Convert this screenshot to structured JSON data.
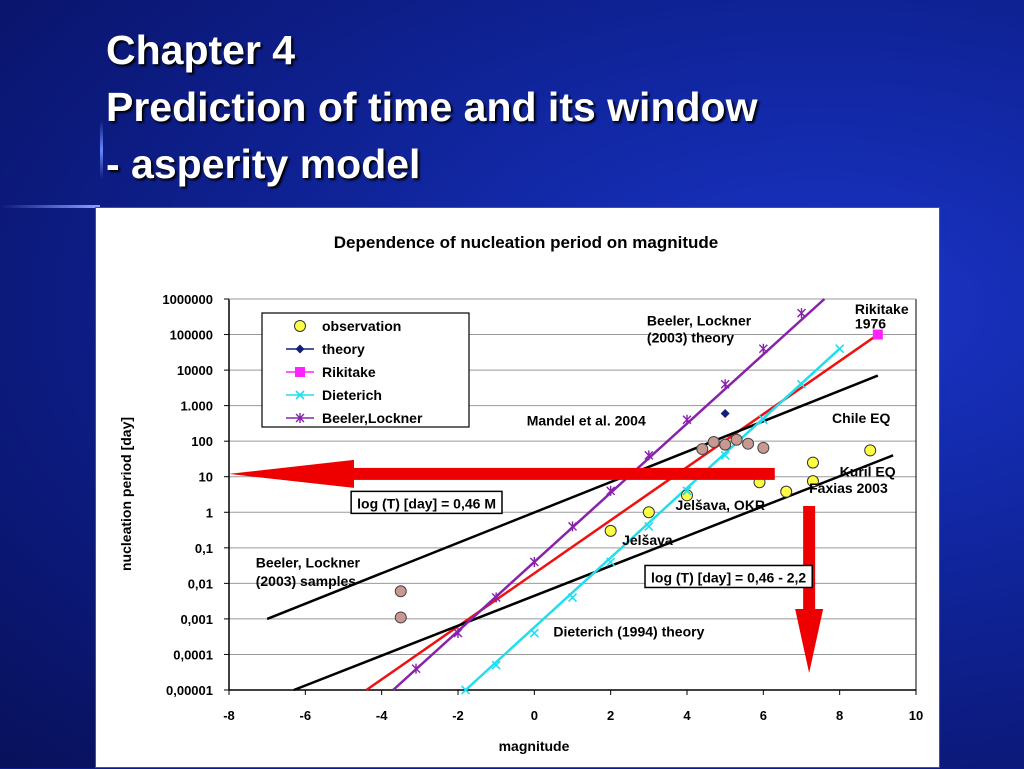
{
  "slide": {
    "title_line1": "Chapter 4",
    "title_line2": "Prediction of time and its window",
    "title_line3": "- asperity model"
  },
  "colors": {
    "observation_fill": "#ffff44",
    "observation_brown_fill": "#c99890",
    "theory": "#10207a",
    "rikitake": "#ff22ff",
    "dieterich": "#22ddee",
    "beeler_lockner": "#8822aa",
    "red_line": "#ee1111",
    "black_line": "#000000",
    "arrow": "#ee0000"
  },
  "chart_data": {
    "type": "scatter",
    "title": "Dependence of nucleation period on magnitude",
    "xlabel": "magnitude",
    "ylabel": "nucleation period [day]",
    "xlim": [
      -8,
      10
    ],
    "ylim": [
      1e-05,
      1000000
    ],
    "y_scale": "log",
    "grid": true,
    "legend_position": "top-left",
    "x_ticks": [
      "-8",
      "-6",
      "-4",
      "-2",
      "0",
      "2",
      "4",
      "6",
      "8",
      "10"
    ],
    "y_ticks": [
      "0,00001",
      "0,0001",
      "0,001",
      "0,01",
      "0,1",
      "1",
      "10",
      "100",
      "1.000",
      "10000",
      "100000",
      "1000000"
    ],
    "legend": [
      "observation",
      "theory",
      "Rikitake",
      "Dieterich",
      "Beeler,Lockner"
    ],
    "series": [
      {
        "name": "observation",
        "marker": "circle",
        "points": [
          [
            2.0,
            0.3
          ],
          [
            3.0,
            1.0
          ],
          [
            4.0,
            3.0
          ],
          [
            5.9,
            7.0
          ],
          [
            6.6,
            3.8
          ],
          [
            7.3,
            25
          ],
          [
            7.3,
            7.5
          ],
          [
            8.8,
            55
          ]
        ]
      },
      {
        "name": "observation",
        "marker": "circle-brown",
        "points": [
          [
            -3.5,
            0.006
          ],
          [
            -3.5,
            0.0011
          ],
          [
            4.4,
            60
          ],
          [
            4.7,
            95
          ],
          [
            5.0,
            80
          ],
          [
            5.3,
            110
          ],
          [
            5.6,
            85
          ],
          [
            6.0,
            65
          ]
        ]
      },
      {
        "name": "theory",
        "marker": "diamond",
        "points": [
          [
            5.0,
            600
          ]
        ]
      },
      {
        "name": "Rikitake",
        "marker": "square",
        "points": [
          [
            9.0,
            100000
          ]
        ]
      },
      {
        "name": "Dieterich",
        "marker": "x",
        "points": [
          [
            -1.8,
            1e-05
          ],
          [
            -1.0,
            5e-05
          ],
          [
            0.0,
            0.0004
          ],
          [
            1.0,
            0.004
          ],
          [
            2.0,
            0.04
          ],
          [
            3.0,
            0.4
          ],
          [
            4.0,
            4
          ],
          [
            5.0,
            40
          ],
          [
            6.0,
            400
          ],
          [
            7.0,
            4000
          ],
          [
            8.0,
            40000
          ]
        ]
      },
      {
        "name": "Beeler,Lockner",
        "marker": "star",
        "points": [
          [
            -3.1,
            4e-05
          ],
          [
            -2.0,
            0.0004
          ],
          [
            -1.0,
            0.004
          ],
          [
            0.0,
            0.04
          ],
          [
            1.0,
            0.4
          ],
          [
            2.0,
            4
          ],
          [
            3.0,
            40
          ],
          [
            4.0,
            400
          ],
          [
            5.0,
            4000
          ],
          [
            6.0,
            40000
          ],
          [
            7.0,
            400000
          ]
        ]
      }
    ],
    "lines": [
      {
        "name": "Rikitake",
        "points": [
          [
            -4.4,
            1e-05
          ],
          [
            9.0,
            100000
          ]
        ]
      },
      {
        "name": "Dieterich (1994) theory",
        "points": [
          [
            -6.3,
            1e-05
          ],
          [
            9.4,
            40
          ]
        ]
      },
      {
        "name": "Mandel et al. 2004",
        "points": [
          [
            -7.0,
            0.001
          ],
          [
            9.0,
            7000
          ]
        ]
      },
      {
        "name": "Beeler, Lockner (2003) theory",
        "points": [
          [
            -3.7,
            1e-05
          ],
          [
            7.6,
            1000000
          ]
        ]
      },
      {
        "name": "Dieterich",
        "points": [
          [
            -1.8,
            1e-05
          ],
          [
            8.0,
            40000
          ]
        ]
      }
    ],
    "annotations": [
      {
        "text": "Rikitake",
        "x": 8.4,
        "y": 380000
      },
      {
        "text": "1976",
        "x": 8.4,
        "y": 150000
      },
      {
        "text": "Beeler, Lockner",
        "x": 2.95,
        "y": 180000
      },
      {
        "text": "(2003) theory",
        "x": 2.95,
        "y": 60000
      },
      {
        "text": "Mandel et al. 2004",
        "x": -0.2,
        "y": 280
      },
      {
        "text": "Chile EQ",
        "x": 7.8,
        "y": 330
      },
      {
        "text": "Kuril EQ",
        "x": 8.0,
        "y": 10
      },
      {
        "text": "Faxias 2003",
        "x": 7.2,
        "y": 3.5
      },
      {
        "text": "Jelšava, OKR",
        "x": 3.7,
        "y": 1.15
      },
      {
        "text": "Jelšava",
        "x": 2.3,
        "y": 0.12
      },
      {
        "text": "Beeler, Lockner",
        "x": -7.3,
        "y": 0.028
      },
      {
        "text": "(2003) samples",
        "x": -7.3,
        "y": 0.0085
      },
      {
        "text": "Dieterich (1994) theory",
        "x": 0.5,
        "y": 0.00032
      }
    ],
    "boxed_annotations": [
      {
        "text": "log (T)  [day] = 0,46 M",
        "x": -4.8,
        "y": 3.4
      },
      {
        "text": "log (T)  [day] = 0,46      - 2,2",
        "x": 2.9,
        "y": 0.028
      }
    ],
    "arrows": [
      {
        "from": [
          6.3,
          12
        ],
        "to": [
          -8.0,
          12
        ]
      },
      {
        "from": [
          7.2,
          1.5
        ],
        "to": [
          7.2,
          3e-05
        ]
      }
    ]
  }
}
